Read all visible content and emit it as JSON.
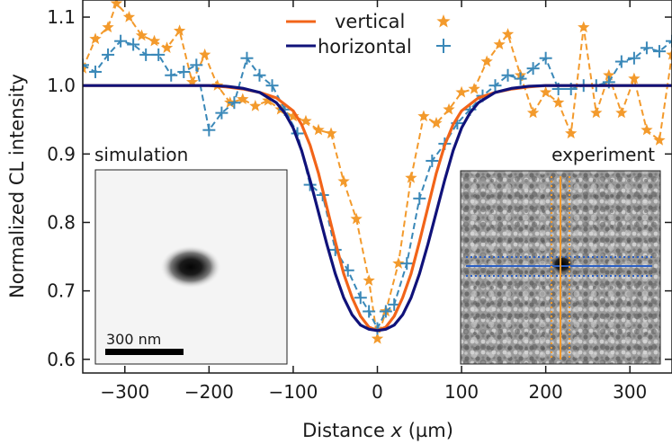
{
  "chart_data": {
    "type": "line",
    "xlabel_prefix": "Distance ",
    "xlabel_var": "x",
    "xlabel_suffix": " (µm)",
    "ylabel": "Normalized CL intensity",
    "xlim": [
      -350,
      350
    ],
    "ylim": [
      0.58,
      1.125
    ],
    "xticks": [
      -300,
      -200,
      -100,
      0,
      100,
      200,
      300
    ],
    "xtick_labels": [
      "−300",
      "−200",
      "−100",
      "0",
      "100",
      "200",
      "300"
    ],
    "yticks": [
      0.6,
      0.7,
      0.8,
      0.9,
      1.0,
      1.1
    ],
    "ytick_labels": [
      "0.6",
      "0.7",
      "0.8",
      "0.9",
      "1.0",
      "1.1"
    ],
    "colors": {
      "vertical": "#f26419",
      "horizontal": "#10127a",
      "vertical_exp": "#f39a2c",
      "horizontal_exp": "#3a88b8"
    },
    "legend": {
      "placement": "top-center",
      "entries": [
        "vertical",
        "horizontal"
      ]
    },
    "series": [
      {
        "name": "vertical",
        "style": "solid",
        "x": [
          -350,
          -300,
          -250,
          -200,
          -180,
          -160,
          -140,
          -120,
          -100,
          -90,
          -80,
          -70,
          -60,
          -50,
          -40,
          -30,
          -20,
          -10,
          0,
          10,
          20,
          30,
          40,
          50,
          60,
          70,
          80,
          90,
          100,
          120,
          140,
          160,
          180,
          200,
          250,
          300,
          350
        ],
        "y": [
          1.0,
          1.0,
          1.0,
          1.0,
          0.998,
          0.995,
          0.99,
          0.982,
          0.963,
          0.943,
          0.913,
          0.872,
          0.822,
          0.772,
          0.725,
          0.69,
          0.663,
          0.647,
          0.642,
          0.647,
          0.663,
          0.69,
          0.725,
          0.772,
          0.822,
          0.872,
          0.913,
          0.943,
          0.963,
          0.982,
          0.99,
          0.995,
          0.998,
          1.0,
          1.0,
          1.0,
          1.0
        ]
      },
      {
        "name": "horizontal",
        "style": "solid",
        "x": [
          -350,
          -300,
          -250,
          -200,
          -180,
          -160,
          -140,
          -120,
          -110,
          -100,
          -90,
          -80,
          -70,
          -60,
          -50,
          -40,
          -30,
          -20,
          -10,
          0,
          10,
          20,
          30,
          40,
          50,
          60,
          70,
          80,
          90,
          100,
          110,
          120,
          140,
          160,
          180,
          200,
          250,
          300,
          350
        ],
        "y": [
          1.0,
          1.0,
          1.0,
          1.0,
          0.999,
          0.996,
          0.99,
          0.975,
          0.96,
          0.938,
          0.905,
          0.862,
          0.815,
          0.768,
          0.725,
          0.69,
          0.665,
          0.65,
          0.644,
          0.642,
          0.644,
          0.65,
          0.665,
          0.69,
          0.725,
          0.768,
          0.815,
          0.862,
          0.905,
          0.938,
          0.96,
          0.975,
          0.99,
          0.996,
          0.999,
          1.0,
          1.0,
          1.0,
          1.0
        ]
      },
      {
        "name": "vertical experiment",
        "style": "dashed",
        "marker": "star",
        "x": [
          -350,
          -335,
          -320,
          -310,
          -295,
          -280,
          -265,
          -250,
          -235,
          -220,
          -205,
          -190,
          -175,
          -160,
          -145,
          -130,
          -115,
          -100,
          -85,
          -70,
          -55,
          -40,
          -25,
          -10,
          0,
          10,
          25,
          40,
          55,
          70,
          85,
          100,
          115,
          130,
          145,
          155,
          170,
          185,
          200,
          215,
          230,
          245,
          260,
          275,
          290,
          305,
          320,
          335,
          350
        ],
        "y": [
          1.025,
          1.068,
          1.085,
          1.12,
          1.1,
          1.073,
          1.065,
          1.055,
          1.08,
          1.005,
          1.045,
          1.0,
          0.975,
          0.98,
          0.97,
          0.978,
          0.965,
          0.955,
          0.948,
          0.935,
          0.93,
          0.86,
          0.805,
          0.715,
          0.63,
          0.67,
          0.74,
          0.865,
          0.955,
          0.945,
          0.965,
          0.99,
          0.995,
          1.035,
          1.06,
          1.075,
          1.015,
          0.96,
          0.99,
          0.975,
          0.93,
          1.085,
          0.96,
          1.015,
          0.96,
          1.01,
          0.935,
          0.92,
          1.045
        ]
      },
      {
        "name": "horizontal experiment",
        "style": "dashed",
        "marker": "plus",
        "x": [
          -350,
          -335,
          -320,
          -305,
          -290,
          -275,
          -260,
          -245,
          -230,
          -215,
          -200,
          -185,
          -170,
          -155,
          -140,
          -125,
          -110,
          -95,
          -80,
          -65,
          -50,
          -35,
          -20,
          -10,
          0,
          10,
          20,
          35,
          50,
          65,
          80,
          95,
          110,
          125,
          140,
          155,
          170,
          185,
          200,
          215,
          230,
          245,
          260,
          275,
          290,
          305,
          320,
          335,
          350
        ],
        "y": [
          1.03,
          1.02,
          1.045,
          1.065,
          1.06,
          1.045,
          1.045,
          1.015,
          1.02,
          1.03,
          0.935,
          0.96,
          0.975,
          1.04,
          1.015,
          1.0,
          0.965,
          0.93,
          0.855,
          0.84,
          0.76,
          0.73,
          0.69,
          0.67,
          0.645,
          0.67,
          0.68,
          0.74,
          0.835,
          0.89,
          0.915,
          0.945,
          0.965,
          0.985,
          1.0,
          1.015,
          1.01,
          1.025,
          1.04,
          0.995,
          0.995,
          1.0,
          1.0,
          1.005,
          1.035,
          1.04,
          1.055,
          1.05,
          1.065
        ]
      }
    ],
    "insets": {
      "simulation": {
        "label": "simulation",
        "scalebar": "300 nm"
      },
      "experiment": {
        "label": "experiment"
      }
    }
  }
}
